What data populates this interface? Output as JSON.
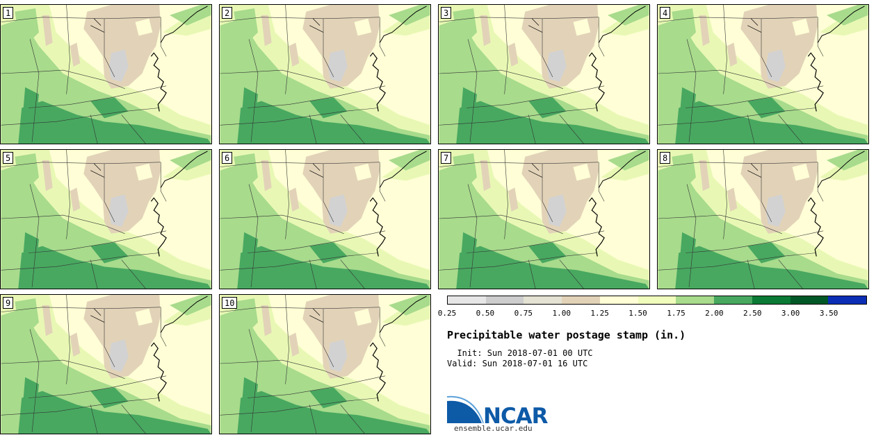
{
  "panels": [
    {
      "label": "1"
    },
    {
      "label": "2"
    },
    {
      "label": "3"
    },
    {
      "label": "4"
    },
    {
      "label": "5"
    },
    {
      "label": "6"
    },
    {
      "label": "7"
    },
    {
      "label": "8"
    },
    {
      "label": "9"
    },
    {
      "label": "10"
    }
  ],
  "colorbar": {
    "ticks": [
      "0.25",
      "0.50",
      "0.75",
      "1.00",
      "1.25",
      "1.50",
      "1.75",
      "2.00",
      "2.50",
      "3.00",
      "3.50"
    ],
    "colors": [
      "#e6e6e6",
      "#cdcdcd",
      "#e3e2d3",
      "#e2d3b8",
      "#fffed6",
      "#f0fcbc",
      "#a8db8c",
      "#48a860",
      "#0a7a35",
      "#015826",
      "#0c2eb5"
    ]
  },
  "map_colors": {
    "background": "#fffed6",
    "light_green": "#e8f8b4",
    "green": "#a8db8c",
    "dark_green": "#48a860",
    "darker_green": "#0a7a35",
    "tan": "#e2d3b8",
    "gray": "#d2d2d2"
  },
  "title": "Precipitable water postage stamp (in.)",
  "init": "  Init: Sun 2018-07-01 00 UTC",
  "valid": "Valid: Sun 2018-07-01 16 UTC",
  "logo": {
    "text": "NCAR",
    "url": "ensemble.ucar.edu"
  }
}
